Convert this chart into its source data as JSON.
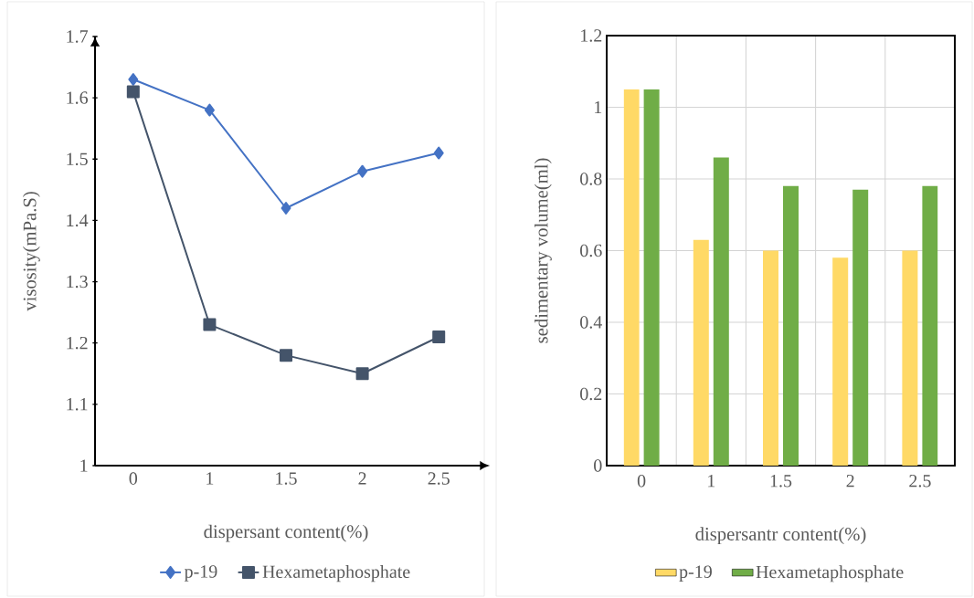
{
  "chart_data": [
    {
      "type": "line",
      "categories": [
        "0",
        "1",
        "1.5",
        "2",
        "2.5"
      ],
      "xlabel": "dispersant content(%)",
      "ylabel": "visosity(mPa.S)",
      "ylim": [
        1,
        1.7
      ],
      "yticks": [
        1,
        1.1,
        1.2,
        1.3,
        1.4,
        1.5,
        1.6,
        1.7
      ],
      "grid": false,
      "legend": "bottom",
      "series": [
        {
          "name": "p-19",
          "color": "#4472c4",
          "marker": "diamond",
          "values": [
            1.63,
            1.58,
            1.42,
            1.48,
            1.51
          ]
        },
        {
          "name": "Hexametaphosphate",
          "color": "#44546a",
          "marker": "square",
          "values": [
            1.61,
            1.23,
            1.18,
            1.15,
            1.21
          ]
        }
      ]
    },
    {
      "type": "bar",
      "categories": [
        "0",
        "1",
        "1.5",
        "2",
        "2.5"
      ],
      "xlabel": "dispersantr content(%)",
      "ylabel": "sedimentary volume(ml)",
      "ylim": [
        0,
        1.2
      ],
      "yticks": [
        0,
        0.2,
        0.4,
        0.6,
        0.8,
        1,
        1.2
      ],
      "grid": true,
      "legend": "bottom",
      "series": [
        {
          "name": "p-19",
          "color": "#ffd966",
          "values": [
            1.05,
            0.63,
            0.6,
            0.58,
            0.6
          ]
        },
        {
          "name": "Hexametaphosphate",
          "color": "#70ad47",
          "values": [
            1.05,
            0.86,
            0.78,
            0.77,
            0.78
          ]
        }
      ]
    }
  ]
}
